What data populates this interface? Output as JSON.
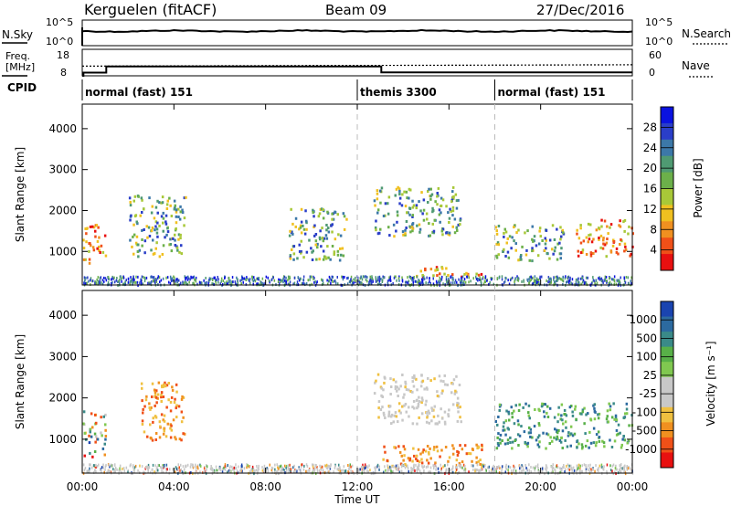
{
  "header": {
    "site": "Kerguelen (fitACF)",
    "beam": "Beam 09",
    "date": "27/Dec/2016"
  },
  "summary_panel": {
    "nsky_label": "N.Sky",
    "nsearch_label": "N.Search",
    "freq_label_line1": "Freq.",
    "freq_label_line2": "[MHz]",
    "nave_label": "Nave",
    "cpid_label": "CPID",
    "noise_ticks": [
      "10^5",
      "10^0"
    ],
    "freq_ticks": [
      "18",
      "8"
    ],
    "nave_ticks": [
      "60",
      "0"
    ]
  },
  "cpid_segments": [
    {
      "label": "normal (fast) 151",
      "start_hour": 0,
      "end_hour": 12
    },
    {
      "label": "themis 3300",
      "start_hour": 12,
      "end_hour": 18
    },
    {
      "label": "normal (fast) 151",
      "start_hour": 18,
      "end_hour": 24
    }
  ],
  "power_panel": {
    "ylabel": "Slant Range [km]",
    "yticks": [
      "4000",
      "3000",
      "2000",
      "1000"
    ],
    "colorbar_label": "Power [dB]",
    "colorbar_ticks": [
      "28",
      "24",
      "20",
      "16",
      "12",
      "8",
      "4"
    ],
    "colorbar_colors": [
      "#0a12e0",
      "#2a3ec8",
      "#3c78a8",
      "#4f9a72",
      "#6cb04a",
      "#a8c838",
      "#f0c020",
      "#f09020",
      "#f05018",
      "#e81010"
    ]
  },
  "velocity_panel": {
    "ylabel": "Slant Range [km]",
    "yticks": [
      "4000",
      "3000",
      "2000",
      "1000"
    ],
    "colorbar_label": "Velocity [m s⁻¹]",
    "colorbar_ticks": [
      "1000",
      "500",
      "100",
      "25",
      "-25",
      "-100",
      "-500",
      "-1000"
    ],
    "colorbar_colors": [
      "#1a44b0",
      "#2c6aa0",
      "#3a8a88",
      "#58b048",
      "#80c850",
      "#c8c8c8",
      "#c8c8c8",
      "#f0c040",
      "#f09020",
      "#f05018",
      "#e81010"
    ]
  },
  "x_axis": {
    "xlabel": "Time UT",
    "ticks": [
      "00:00",
      "04:00",
      "08:00",
      "12:00",
      "16:00",
      "20:00",
      "00:00"
    ]
  },
  "chart_data": {
    "type": "heatmap",
    "title": "Kerguelen (fitACF)   Beam 09   27/Dec/2016",
    "xlabel": "Time UT",
    "ylabel": "Slant Range [km]",
    "xlim_hours": [
      0,
      24
    ],
    "ylim_km": [
      180,
      4600
    ],
    "freq_mhz_series": [
      {
        "name": "Freq.",
        "x": [
          0,
          0.05,
          1,
          1.05,
          13,
          13.05,
          24
        ],
        "y": [
          8,
          9.2,
          9.2,
          11.5,
          11.5,
          9.3,
          9.3
        ]
      }
    ],
    "nave_series": [
      {
        "name": "Nave",
        "x": [
          0,
          24
        ],
        "y": [
          22,
          25
        ]
      }
    ],
    "scatter_regions_power": [
      {
        "t0": 0.0,
        "t1": 1.0,
        "r0": 700,
        "r1": 1700,
        "level": "high"
      },
      {
        "t0": 2.0,
        "t1": 4.5,
        "r0": 900,
        "r1": 2400,
        "level": "mid"
      },
      {
        "t0": 9.0,
        "t1": 11.5,
        "r0": 800,
        "r1": 2100,
        "level": "mid"
      },
      {
        "t0": 12.7,
        "t1": 16.5,
        "r0": 1400,
        "r1": 2600,
        "level": "mid"
      },
      {
        "t0": 14.5,
        "t1": 17.5,
        "r0": 380,
        "r1": 650,
        "level": "high"
      },
      {
        "t0": 18.0,
        "t1": 21.0,
        "r0": 800,
        "r1": 1700,
        "level": "mid"
      },
      {
        "t0": 21.5,
        "t1": 24.0,
        "r0": 900,
        "r1": 1800,
        "level": "high"
      }
    ],
    "scatter_regions_velocity": [
      {
        "t0": 0.0,
        "t1": 1.0,
        "r0": 600,
        "r1": 1700,
        "sign": "mixed"
      },
      {
        "t0": 2.5,
        "t1": 4.5,
        "r0": 1000,
        "r1": 2400,
        "sign": "negative"
      },
      {
        "t0": 12.7,
        "t1": 16.5,
        "r0": 1400,
        "r1": 2600,
        "sign": "near-zero"
      },
      {
        "t0": 13.0,
        "t1": 17.5,
        "r0": 380,
        "r1": 900,
        "sign": "negative"
      },
      {
        "t0": 18.0,
        "t1": 24.0,
        "r0": 800,
        "r1": 1900,
        "sign": "positive"
      }
    ]
  }
}
